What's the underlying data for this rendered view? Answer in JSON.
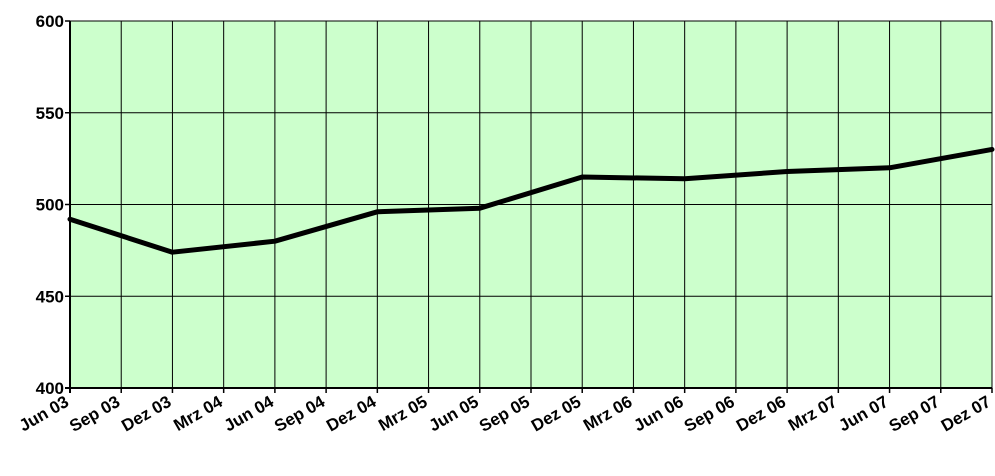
{
  "colors": {
    "plot_background": "#ccffcc",
    "grid": "#000000",
    "line": "#000000"
  },
  "chart_data": {
    "type": "line",
    "title": "",
    "xlabel": "",
    "ylabel": "",
    "categories": [
      "Jun 03",
      "Sep 03",
      "Dez 03",
      "Mrz 04",
      "Jun 04",
      "Sep 04",
      "Dez 04",
      "Mrz 05",
      "Jun 05",
      "Sep 05",
      "Dez 05",
      "Mrz 06",
      "Jun 06",
      "Sep 06",
      "Dez 06",
      "Mrz 07",
      "Jun 07",
      "Sep 07",
      "Dez 07"
    ],
    "ylim": [
      400,
      600
    ],
    "yticks": [
      "400",
      "450",
      "500",
      "550",
      "600"
    ],
    "grid": true,
    "legend": "none",
    "series": [
      {
        "points": [
          [
            "Jun 03",
            492
          ],
          [
            "Dez 03",
            474
          ],
          [
            "Jun 04",
            480
          ],
          [
            "Dez 04",
            496
          ],
          [
            "Jun 05",
            498
          ],
          [
            "Dez 05",
            515
          ],
          [
            "Jun 06",
            514
          ],
          [
            "Dez 06",
            518
          ],
          [
            "Jun 07",
            520
          ],
          [
            "Dez 07",
            530
          ]
        ]
      }
    ]
  }
}
